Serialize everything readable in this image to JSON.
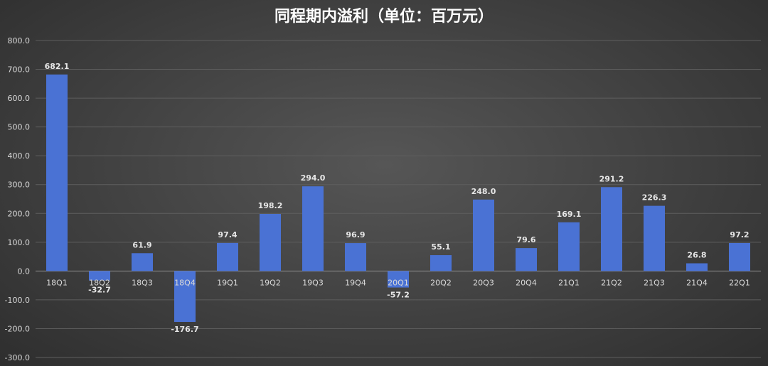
{
  "chart_data": {
    "type": "bar",
    "title": "同程期内溢利（单位：百万元）",
    "categories": [
      "18Q1",
      "18Q2",
      "18Q3",
      "18Q4",
      "19Q1",
      "19Q2",
      "19Q3",
      "19Q4",
      "20Q1",
      "20Q2",
      "20Q3",
      "20Q4",
      "21Q1",
      "21Q2",
      "21Q3",
      "21Q4",
      "22Q1"
    ],
    "values": [
      682.1,
      -32.7,
      61.9,
      -176.7,
      97.4,
      198.2,
      294.0,
      96.9,
      -57.2,
      55.1,
      248.0,
      79.6,
      169.1,
      291.2,
      226.3,
      26.8,
      97.2
    ],
    "value_labels": [
      "682.1",
      "-32.7",
      "61.9",
      "-176.7",
      "97.4",
      "198.2",
      "294.0",
      "96.9",
      "-57.2",
      "55.1",
      "248.0",
      "79.6",
      "169.1",
      "291.2",
      "226.3",
      "26.8",
      "97.2"
    ],
    "ylim": [
      -300,
      800
    ],
    "yticks": [
      800,
      700,
      600,
      500,
      400,
      300,
      200,
      100,
      0,
      -100,
      -200,
      -300
    ],
    "ytick_labels": [
      "800.0",
      "700.0",
      "600.0",
      "500.0",
      "400.0",
      "300.0",
      "200.0",
      "100.0",
      "0.0",
      "-100.0",
      "-200.0",
      "-300.0"
    ],
    "xlabel": "",
    "ylabel": "",
    "grid": true,
    "legend": "none",
    "bar_color": "#4a72d4",
    "background_color": "#454545"
  }
}
